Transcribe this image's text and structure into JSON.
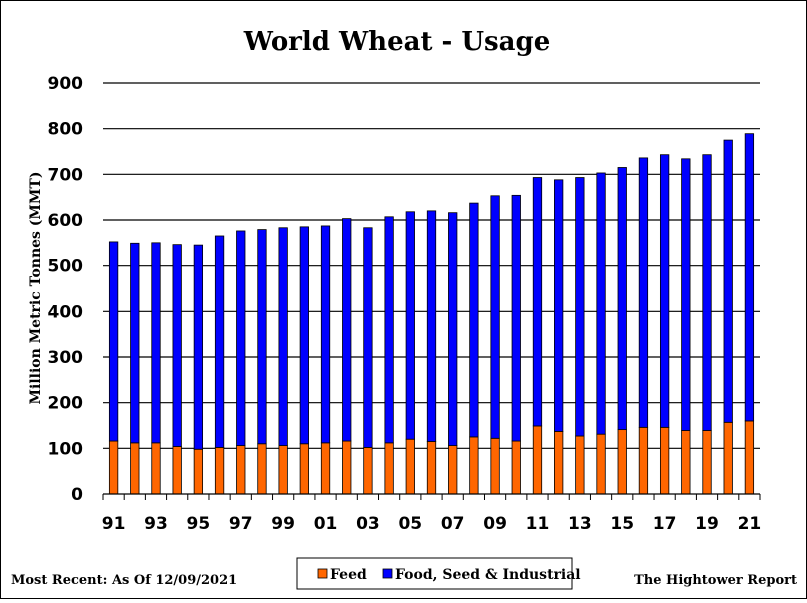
{
  "chart_data": {
    "type": "bar",
    "stacked": true,
    "title": "World Wheat - Usage",
    "ylabel": "Million Metric Tonnes (MMT)",
    "xlabel": "",
    "ylim": [
      0,
      900
    ],
    "yticks": [
      0,
      100,
      200,
      300,
      400,
      500,
      600,
      700,
      800,
      900
    ],
    "grid": true,
    "legend_position": "bottom-center",
    "categories": [
      "91",
      "92",
      "93",
      "94",
      "95",
      "96",
      "97",
      "98",
      "99",
      "00",
      "01",
      "02",
      "03",
      "04",
      "05",
      "06",
      "07",
      "08",
      "09",
      "10",
      "11",
      "12",
      "13",
      "14",
      "15",
      "16",
      "17",
      "18",
      "19",
      "20",
      "21"
    ],
    "xtick_labels": [
      "91",
      "93",
      "95",
      "97",
      "99",
      "01",
      "03",
      "05",
      "07",
      "09",
      "11",
      "13",
      "15",
      "17",
      "19",
      "21"
    ],
    "series": [
      {
        "name": "Feed",
        "color": "#FF6600",
        "values": [
          116,
          112,
          112,
          104,
          98,
          102,
          106,
          110,
          106,
          110,
          112,
          116,
          102,
          112,
          120,
          115,
          106,
          125,
          122,
          116,
          149,
          137,
          127,
          131,
          141,
          146,
          146,
          139,
          139,
          157,
          160
        ]
      },
      {
        "name": "Food, Seed & Industrial",
        "color": "#0000FF",
        "values": [
          436,
          437,
          438,
          442,
          447,
          463,
          470,
          469,
          477,
          475,
          475,
          487,
          481,
          495,
          498,
          505,
          510,
          512,
          531,
          538,
          544,
          551,
          566,
          572,
          574,
          590,
          597,
          595,
          604,
          618,
          629
        ]
      }
    ]
  },
  "footer": {
    "left": "Most Recent: As Of 12/09/2021",
    "right": "The Hightower Report"
  }
}
